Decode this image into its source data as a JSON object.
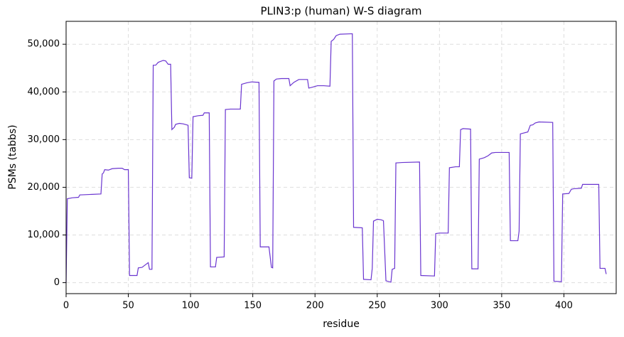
{
  "chart_data": {
    "type": "line",
    "title": "PLIN3:p (human) W-S diagram",
    "x_label": "residue",
    "y_label": "PSMs (tabbs)",
    "color": "#6a35d0",
    "grid": true,
    "xlim": [
      0,
      442
    ],
    "ylim": [
      -2300,
      54800
    ],
    "xticks": [
      0,
      50,
      100,
      150,
      200,
      250,
      300,
      350,
      400
    ],
    "yticks": [
      0,
      {
        "value": 10000,
        "label": "10,000"
      },
      {
        "value": 20000,
        "label": "20,000"
      },
      {
        "value": 30000,
        "label": "30,000"
      },
      {
        "value": 40000,
        "label": "40,000"
      },
      {
        "value": 50000,
        "label": "50,000"
      }
    ],
    "x": [
      0,
      1,
      5,
      10,
      11,
      28,
      29,
      30,
      31,
      34,
      37,
      42,
      45,
      47,
      50,
      51,
      57,
      58,
      61,
      64,
      66,
      67,
      69,
      70,
      72,
      74,
      78,
      80,
      82,
      84,
      85,
      87,
      88,
      91,
      94,
      98,
      99,
      101,
      102,
      106,
      110,
      111,
      115,
      116,
      120,
      121,
      127,
      128,
      132,
      140,
      141,
      145,
      149,
      155,
      156,
      163,
      165,
      166,
      167,
      169,
      173,
      179,
      180,
      183,
      187,
      194,
      195,
      198,
      202,
      207,
      212,
      213,
      215,
      217,
      220,
      230,
      231,
      238,
      239,
      245,
      246,
      247,
      250,
      253,
      255,
      257,
      261,
      262,
      264,
      265,
      270,
      284,
      285,
      296,
      297,
      300,
      307,
      308,
      313,
      316,
      317,
      319,
      325,
      326,
      331,
      332,
      336,
      339,
      342,
      345,
      356,
      357,
      363,
      364,
      365,
      371,
      373,
      375,
      377,
      380,
      391,
      392,
      398,
      399,
      404,
      406,
      408,
      414,
      415,
      428,
      429,
      433,
      434
    ],
    "values": [
      0,
      17600,
      17800,
      17900,
      18400,
      18600,
      22800,
      23000,
      23700,
      23600,
      23900,
      24000,
      24000,
      23700,
      23700,
      1500,
      1500,
      3100,
      3200,
      3800,
      4200,
      2800,
      2800,
      45600,
      45600,
      46200,
      46600,
      46500,
      45800,
      45800,
      32100,
      32600,
      33200,
      33400,
      33300,
      33000,
      22000,
      21900,
      34800,
      35000,
      35100,
      35600,
      35600,
      3300,
      3300,
      5300,
      5400,
      36300,
      36400,
      36400,
      41600,
      41900,
      42100,
      42000,
      7500,
      7500,
      3200,
      3100,
      42300,
      42700,
      42800,
      42800,
      41300,
      42000,
      42600,
      42600,
      40800,
      41000,
      41300,
      41300,
      41200,
      50600,
      51000,
      51800,
      52100,
      52200,
      11600,
      11500,
      700,
      600,
      3000,
      12900,
      13300,
      13200,
      13000,
      400,
      100,
      2800,
      3000,
      25100,
      25200,
      25300,
      1500,
      1400,
      10300,
      10400,
      10400,
      24100,
      24300,
      24300,
      32100,
      32300,
      32200,
      2900,
      2900,
      25900,
      26200,
      26600,
      27200,
      27300,
      27300,
      8800,
      8800,
      10800,
      31200,
      31600,
      33000,
      33100,
      33500,
      33700,
      33600,
      300,
      200,
      18600,
      18700,
      19600,
      19700,
      19800,
      20600,
      20600,
      3000,
      3000,
      1800
    ]
  }
}
